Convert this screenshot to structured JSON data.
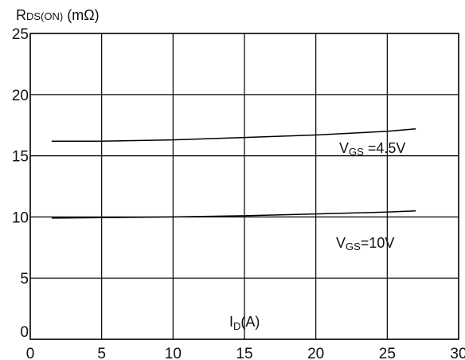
{
  "chart_data": {
    "type": "line",
    "ylabel": {
      "main": "R",
      "sub": "DS(ON)",
      "unit": " (mΩ)"
    },
    "xlabel": {
      "main": "I",
      "sub": "D",
      "unit": "(A)"
    },
    "xlim": [
      0,
      30
    ],
    "ylim": [
      0,
      25
    ],
    "x_ticks": [
      "0",
      "5",
      "10",
      "15",
      "20",
      "25",
      "30"
    ],
    "y_ticks": [
      "0",
      "5",
      "10",
      "15",
      "20",
      "25"
    ],
    "grid": true,
    "series": [
      {
        "name": "VGS=4.5V",
        "label": {
          "main": "V",
          "sub": "GS",
          "rest": " =4.5V"
        },
        "color": "#000000",
        "x": [
          1.5,
          5,
          10,
          15,
          20,
          25,
          27
        ],
        "y": [
          16.2,
          16.2,
          16.3,
          16.5,
          16.7,
          17.0,
          17.2
        ]
      },
      {
        "name": "VGS=10V",
        "label": {
          "main": "V",
          "sub": "GS",
          "rest": "=10V"
        },
        "color": "#000000",
        "x": [
          1.5,
          5,
          10,
          15,
          20,
          25,
          27
        ],
        "y": [
          9.9,
          9.95,
          10.0,
          10.1,
          10.25,
          10.4,
          10.5
        ]
      }
    ]
  }
}
